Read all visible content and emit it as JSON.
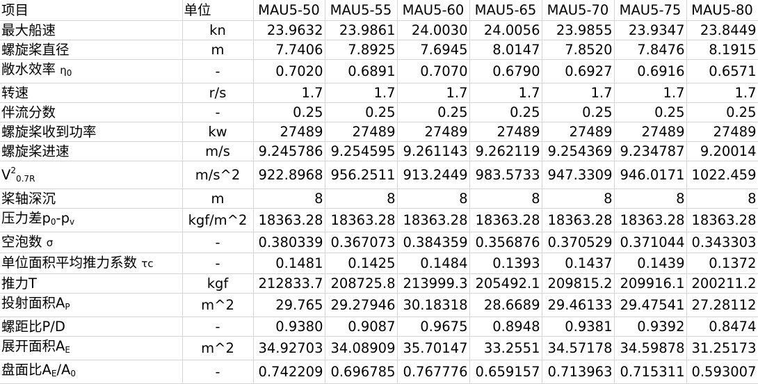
{
  "header": {
    "item": "项目",
    "unit": "单位",
    "models": [
      "MAU5-50",
      "MAU5-55",
      "MAU5-60",
      "MAU5-65",
      "MAU5-70",
      "MAU5-75",
      "MAU5-80"
    ]
  },
  "rows": [
    {
      "name": "最大船速",
      "unit": "kn",
      "values": [
        "23.9632",
        "23.9861",
        "24.0030",
        "24.0056",
        "23.9855",
        "23.9347",
        "23.8449"
      ]
    },
    {
      "name": "螺旋桨直径",
      "unit": "m",
      "values": [
        "7.7406",
        "7.8925",
        "7.6945",
        "8.0147",
        "7.8520",
        "7.8476",
        "8.1915"
      ]
    },
    {
      "name": "敞水效率",
      "name_symbol": "η",
      "name_sub": "0",
      "unit": "-",
      "values": [
        "0.7020",
        "0.6891",
        "0.7070",
        "0.6790",
        "0.6927",
        "0.6916",
        "0.6571"
      ]
    },
    {
      "name": "转速",
      "unit": "r/s",
      "values": [
        "1.7",
        "1.7",
        "1.7",
        "1.7",
        "1.7",
        "1.7",
        "1.7"
      ]
    },
    {
      "name": "伴流分数",
      "unit": "-",
      "values": [
        "0.25",
        "0.25",
        "0.25",
        "0.25",
        "0.25",
        "0.25",
        "0.25"
      ]
    },
    {
      "name": "螺旋桨收到功率",
      "unit": "kw",
      "values": [
        "27489",
        "27489",
        "27489",
        "27489",
        "27489",
        "27489",
        "27489"
      ]
    },
    {
      "name": "螺旋桨进速",
      "unit": "m/s",
      "values": [
        "9.245786",
        "9.254595",
        "9.261143",
        "9.262119",
        "9.254369",
        "9.234787",
        "9.20014"
      ]
    },
    {
      "name": "V",
      "name_sup": "2",
      "name_sub": "0.7R",
      "unit": "m/s^2",
      "values": [
        "922.8968",
        "956.2511",
        "913.2449",
        "983.5733",
        "947.3309",
        "946.0171",
        "1022.459"
      ]
    },
    {
      "name": "桨轴深沉",
      "unit": "m",
      "values": [
        "8",
        "8",
        "8",
        "8",
        "8",
        "8",
        "8"
      ]
    },
    {
      "name_a": "压力差p",
      "sub_a": "0",
      "name_b": "-p",
      "sub_b": "v",
      "unit": "kgf/m^2",
      "values": [
        "18363.28",
        "18363.28",
        "18363.28",
        "18363.28",
        "18363.28",
        "18363.28",
        "18363.28"
      ]
    },
    {
      "name": "空泡数",
      "name_symbol": "σ",
      "unit": "-",
      "values": [
        "0.380339",
        "0.367073",
        "0.384359",
        "0.356876",
        "0.370529",
        "0.371044",
        "0.343303"
      ]
    },
    {
      "name": "单位面积平均推力系数",
      "name_symbol": "τc",
      "unit": "-",
      "values": [
        "0.1481",
        "0.1425",
        "0.1484",
        "0.1393",
        "0.1437",
        "0.1439",
        "0.1372"
      ]
    },
    {
      "name": "推力T",
      "unit": "kgf",
      "values": [
        "212833.7",
        "208725.8",
        "213999.3",
        "205492.1",
        "209815.2",
        "209916.1",
        "200211.2"
      ]
    },
    {
      "name": "投射面积A",
      "name_sub": "P",
      "unit": "m^2",
      "values": [
        "29.765",
        "29.27946",
        "30.18318",
        "28.6689",
        "29.46133",
        "29.47541",
        "27.28112"
      ]
    },
    {
      "name": "螺距比P/D",
      "unit": "-",
      "values": [
        "0.9380",
        "0.9087",
        "0.9675",
        "0.8948",
        "0.9381",
        "0.9392",
        "0.8474"
      ]
    },
    {
      "name": "展开面积A",
      "name_sub": "E",
      "unit": "m^2",
      "values": [
        "34.92703",
        "34.08909",
        "35.70147",
        "33.2551",
        "34.57178",
        "34.59878",
        "31.25173"
      ]
    },
    {
      "name_a": "盘面比A",
      "sub_a": "E",
      "name_b": "/A",
      "sub_b": "0",
      "unit": "-",
      "values": [
        "0.742209",
        "0.696785",
        "0.767776",
        "0.659157",
        "0.713963",
        "0.715311",
        "0.593007"
      ]
    }
  ]
}
